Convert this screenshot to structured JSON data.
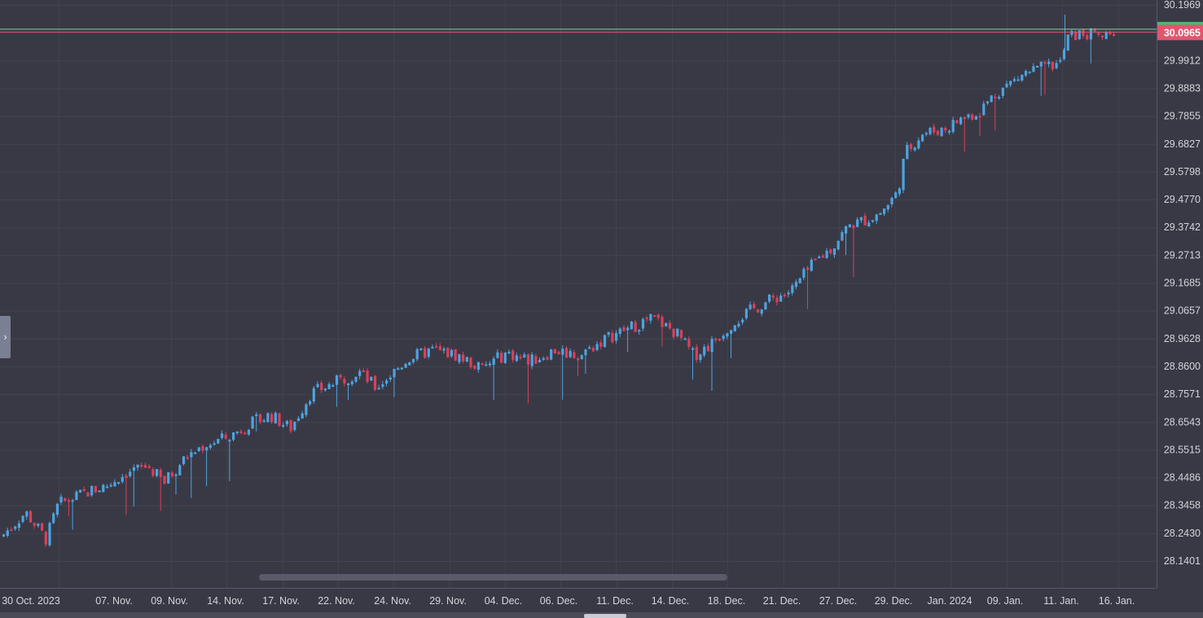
{
  "chart_data": {
    "type": "candlestick",
    "y_ticks": [
      "30.1969",
      "30.0965",
      "29.9912",
      "29.8883",
      "29.7855",
      "29.6827",
      "29.5798",
      "29.4770",
      "29.3742",
      "29.2713",
      "29.1685",
      "29.0657",
      "28.9628",
      "28.8600",
      "28.7571",
      "28.6543",
      "28.5515",
      "28.4486",
      "28.3458",
      "28.2430",
      "28.1401"
    ],
    "ylim": [
      28.09,
      30.22
    ],
    "x_ticks": [
      "30 Oct. 2023",
      "07. Nov.",
      "09. Nov.",
      "14. Nov.",
      "17. Nov.",
      "22. Nov.",
      "24. Nov.",
      "29. Nov.",
      "04. Dec.",
      "06. Dec.",
      "11. Dec.",
      "14. Dec.",
      "18. Dec.",
      "21. Dec.",
      "27. Dec.",
      "29. Dec.",
      "Jan. 2024",
      "09. Jan.",
      "11. Jan.",
      "16. Jan."
    ],
    "current_price": "30.0965",
    "reference_line_price": 30.107,
    "up_color": "#4da3e0",
    "down_color": "#d9405a",
    "series": [
      {
        "name": "",
        "close_path": [
          [
            0,
            28.23
          ],
          [
            30,
            28.32
          ],
          [
            55,
            28.22
          ],
          [
            70,
            28.35
          ],
          [
            110,
            28.4
          ],
          [
            130,
            28.42
          ],
          [
            155,
            28.47
          ],
          [
            180,
            28.49
          ],
          [
            200,
            28.43
          ],
          [
            225,
            28.52
          ],
          [
            250,
            28.57
          ],
          [
            280,
            28.6
          ],
          [
            300,
            28.64
          ],
          [
            330,
            28.68
          ],
          [
            355,
            28.63
          ],
          [
            380,
            28.76
          ],
          [
            410,
            28.8
          ],
          [
            440,
            28.84
          ],
          [
            460,
            28.78
          ],
          [
            500,
            28.89
          ],
          [
            530,
            28.92
          ],
          [
            560,
            28.9
          ],
          [
            590,
            28.85
          ],
          [
            620,
            28.91
          ],
          [
            650,
            28.88
          ],
          [
            680,
            28.92
          ],
          [
            710,
            28.9
          ],
          [
            740,
            28.96
          ],
          [
            770,
            29.0
          ],
          [
            800,
            29.04
          ],
          [
            830,
            28.98
          ],
          [
            850,
            28.9
          ],
          [
            870,
            28.94
          ],
          [
            900,
            29.03
          ],
          [
            940,
            29.1
          ],
          [
            970,
            29.14
          ],
          [
            1000,
            29.25
          ],
          [
            1020,
            29.3
          ],
          [
            1040,
            29.38
          ],
          [
            1060,
            29.4
          ],
          [
            1080,
            29.43
          ],
          [
            1100,
            29.5
          ],
          [
            1110,
            29.65
          ],
          [
            1130,
            29.72
          ],
          [
            1160,
            29.74
          ],
          [
            1180,
            29.78
          ],
          [
            1200,
            29.8
          ],
          [
            1220,
            29.87
          ],
          [
            1240,
            29.91
          ],
          [
            1260,
            29.95
          ],
          [
            1285,
            29.97
          ],
          [
            1300,
            29.98
          ],
          [
            1310,
            30.08
          ],
          [
            1330,
            30.09
          ],
          [
            1350,
            30.08
          ],
          [
            1370,
            30.07
          ]
        ]
      }
    ]
  }
}
